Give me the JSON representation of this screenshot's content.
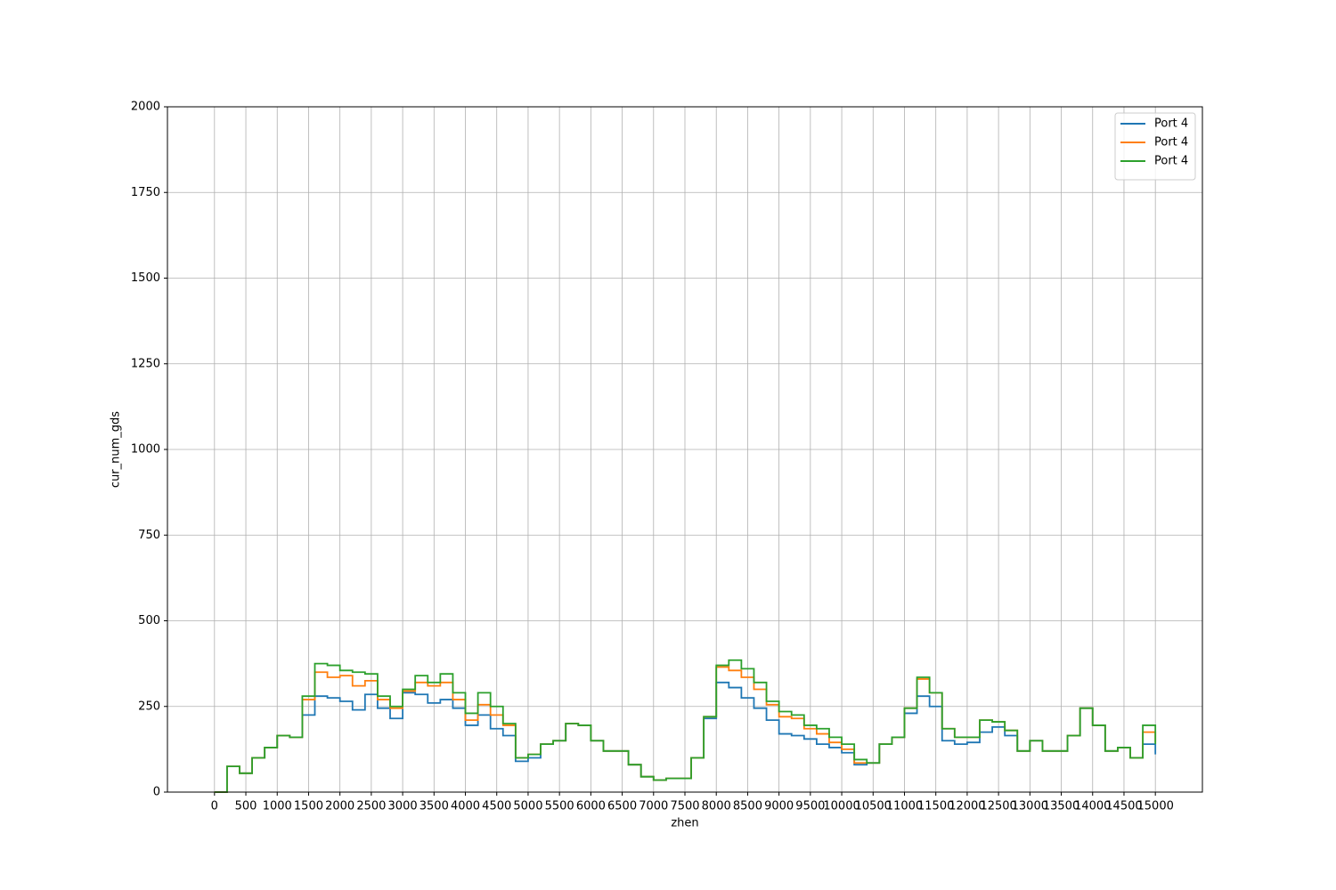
{
  "chart_data": {
    "type": "step",
    "xlabel": "zhen",
    "ylabel": "cur_num_gds",
    "x": [
      0,
      200,
      400,
      600,
      800,
      1000,
      1200,
      1400,
      1600,
      1800,
      2000,
      2200,
      2400,
      2600,
      2800,
      3000,
      3200,
      3400,
      3600,
      3800,
      4000,
      4200,
      4400,
      4600,
      4800,
      5000,
      5200,
      5400,
      5600,
      5800,
      6000,
      6200,
      6400,
      6600,
      6800,
      7000,
      7200,
      7400,
      7600,
      7800,
      8000,
      8200,
      8400,
      8600,
      8800,
      9000,
      9200,
      9400,
      9600,
      9800,
      10000,
      10200,
      10400,
      10600,
      10800,
      11000,
      11200,
      11400,
      11600,
      11800,
      12000,
      12200,
      12400,
      12600,
      12800,
      13000,
      13200,
      13400,
      13600,
      13800,
      14000,
      14200,
      14400,
      14600,
      14800,
      15000
    ],
    "series": [
      {
        "name": "Port 4",
        "color": "#1f77b4",
        "values": [
          0,
          75,
          55,
          100,
          130,
          165,
          160,
          225,
          280,
          275,
          265,
          240,
          285,
          245,
          215,
          290,
          285,
          260,
          270,
          245,
          195,
          225,
          185,
          165,
          90,
          100,
          140,
          150,
          200,
          195,
          150,
          120,
          120,
          80,
          45,
          35,
          40,
          40,
          100,
          215,
          320,
          305,
          275,
          245,
          210,
          170,
          165,
          155,
          140,
          130,
          115,
          80,
          85,
          140,
          160,
          230,
          280,
          250,
          150,
          140,
          145,
          175,
          190,
          165,
          120,
          150,
          120,
          120,
          165,
          245,
          195,
          120,
          130,
          100,
          140,
          110
        ]
      },
      {
        "name": "Port 4",
        "color": "#ff7f0e",
        "values": [
          0,
          75,
          55,
          100,
          130,
          165,
          160,
          270,
          350,
          335,
          340,
          310,
          325,
          270,
          245,
          295,
          320,
          310,
          320,
          270,
          210,
          255,
          225,
          195,
          100,
          110,
          140,
          150,
          200,
          195,
          150,
          120,
          120,
          80,
          45,
          35,
          40,
          40,
          100,
          220,
          365,
          355,
          335,
          300,
          255,
          220,
          215,
          185,
          170,
          145,
          125,
          85,
          85,
          140,
          160,
          245,
          330,
          290,
          185,
          160,
          160,
          210,
          205,
          180,
          120,
          150,
          120,
          120,
          165,
          245,
          195,
          120,
          130,
          100,
          175,
          145
        ]
      },
      {
        "name": "Port 4",
        "color": "#2ca02c",
        "values": [
          0,
          75,
          55,
          100,
          130,
          165,
          160,
          280,
          375,
          370,
          355,
          350,
          345,
          280,
          250,
          300,
          340,
          320,
          345,
          290,
          230,
          290,
          250,
          200,
          100,
          110,
          140,
          150,
          200,
          195,
          150,
          120,
          120,
          80,
          45,
          35,
          40,
          40,
          100,
          220,
          370,
          385,
          360,
          320,
          265,
          235,
          225,
          195,
          185,
          160,
          140,
          95,
          85,
          140,
          160,
          245,
          335,
          290,
          185,
          160,
          160,
          210,
          205,
          180,
          120,
          150,
          120,
          120,
          165,
          245,
          195,
          120,
          130,
          100,
          195,
          140
        ]
      }
    ],
    "xlim": [
      -750,
      15750
    ],
    "ylim": [
      0,
      2000
    ],
    "xticks": [
      0,
      500,
      1000,
      1500,
      2000,
      2500,
      3000,
      3500,
      4000,
      4500,
      5000,
      5500,
      6000,
      6500,
      7000,
      7500,
      8000,
      8500,
      9000,
      9500,
      10000,
      10500,
      11000,
      11500,
      12000,
      12500,
      13000,
      13500,
      14000,
      14500,
      15000
    ],
    "yticks": [
      0,
      250,
      500,
      750,
      1000,
      1250,
      1500,
      1750,
      2000
    ],
    "grid": true,
    "legend": "upper right"
  }
}
